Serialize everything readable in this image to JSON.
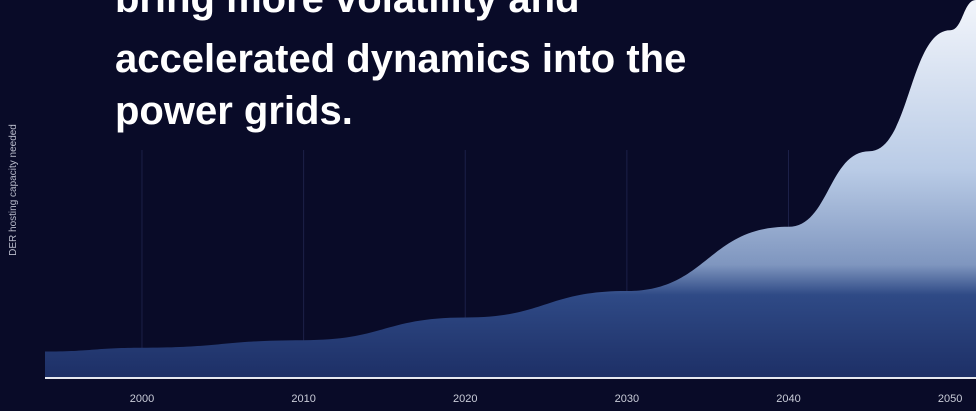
{
  "chart_data": {
    "type": "area",
    "title": [
      "bring more volatility and",
      "accelerated dynamics into the",
      "power grids."
    ],
    "y_label": "DER hosting capacity needed",
    "x": [
      1994,
      2000,
      2010,
      2020,
      2030,
      2040,
      2045,
      2050,
      2051.6
    ],
    "values": [
      7,
      8,
      10,
      16,
      23,
      40,
      60,
      92,
      100
    ],
    "xlim": [
      1994,
      2051.6
    ],
    "ylim": [
      0,
      100
    ],
    "xticks": [
      2000,
      2010,
      2020,
      2030,
      2040,
      2050
    ],
    "grid": true
  }
}
